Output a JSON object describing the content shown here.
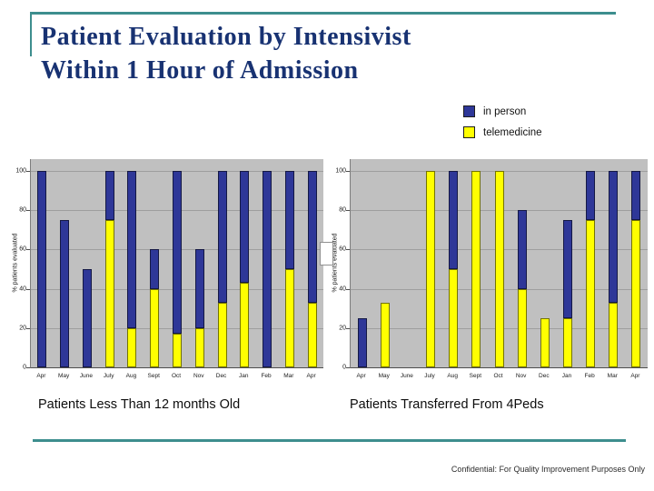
{
  "slide": {
    "title_line1": "Patient Evaluation by Intensivist",
    "title_line2": "Within 1 Hour of Admission",
    "footer": "Confidential: For Quality Improvement Purposes Only"
  },
  "legend": {
    "items": [
      {
        "label": "in person",
        "color": "#2e3798"
      },
      {
        "label": "telemedicine",
        "color": "#ffff00"
      }
    ]
  },
  "chart_data": [
    {
      "type": "bar",
      "stacked": true,
      "caption": "Patients Less Than 12 months Old",
      "ylabel": "% patients evaluated",
      "ylim": [
        0,
        100
      ],
      "y_ticks": [
        0,
        20,
        40,
        60,
        80,
        100
      ],
      "grid": true,
      "plot_bg": "#c0c0c0",
      "legend_position": "top-right-of-slide",
      "categories": [
        "Apr",
        "May",
        "June",
        "July",
        "Aug",
        "Sept",
        "Oct",
        "Nov",
        "Dec",
        "Jan",
        "Feb",
        "Mar",
        "Apr"
      ],
      "series": [
        {
          "name": "telemedicine",
          "color": "#ffff00",
          "values": [
            0,
            0,
            0,
            75,
            20,
            40,
            17,
            20,
            33,
            43,
            0,
            50,
            33
          ]
        },
        {
          "name": "in person",
          "color": "#2e3798",
          "values": [
            100,
            75,
            50,
            25,
            80,
            20,
            83,
            40,
            67,
            57,
            100,
            50,
            67
          ]
        }
      ]
    },
    {
      "type": "bar",
      "stacked": true,
      "caption": "Patients Transferred From 4Peds",
      "ylabel": "% patients evaluated",
      "ylim": [
        0,
        100
      ],
      "y_ticks": [
        0,
        20,
        40,
        60,
        80,
        100
      ],
      "grid": true,
      "plot_bg": "#c0c0c0",
      "legend_position": "top-right-of-slide",
      "categories": [
        "Apr",
        "May",
        "June",
        "July",
        "Aug",
        "Sept",
        "Oct",
        "Nov",
        "Dec",
        "Jan",
        "Feb",
        "Mar",
        "Apr"
      ],
      "series": [
        {
          "name": "telemedicine",
          "color": "#ffff00",
          "values": [
            0,
            33,
            0,
            100,
            50,
            100,
            100,
            40,
            25,
            25,
            75,
            33,
            75
          ]
        },
        {
          "name": "in person",
          "color": "#2e3798",
          "values": [
            25,
            0,
            0,
            0,
            50,
            0,
            0,
            40,
            0,
            50,
            25,
            67,
            25
          ]
        }
      ]
    }
  ]
}
